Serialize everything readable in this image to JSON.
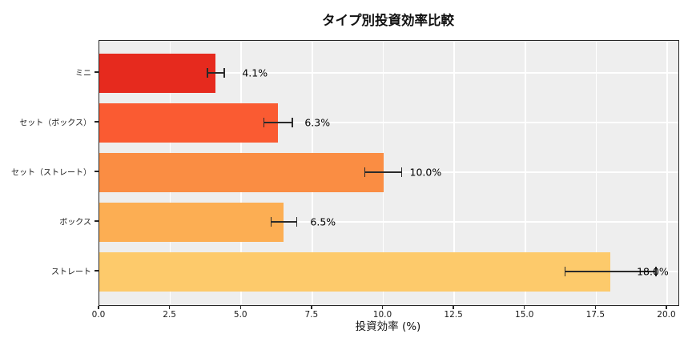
{
  "chart_data": {
    "type": "bar",
    "orientation": "horizontal",
    "title": "タイプ別投資効率比較",
    "xlabel": "投資効率 (%)",
    "ylabel": "",
    "categories": [
      "ミニ",
      "セット（ボックス）",
      "セット（ストレート）",
      "ボックス",
      "ストレート"
    ],
    "values": [
      4.1,
      6.3,
      10.0,
      6.5,
      18.0
    ],
    "errors": [
      0.3,
      0.5,
      0.65,
      0.45,
      1.6
    ],
    "value_labels": [
      "4.1%",
      "6.3%",
      "10.0%",
      "6.5%",
      "18.0%"
    ],
    "bar_colors": [
      "#e62a1e",
      "#fa5b32",
      "#fa8d43",
      "#fcae53",
      "#fdca6b"
    ],
    "xlim": [
      0,
      20.4
    ],
    "xticks": [
      0.0,
      2.5,
      5.0,
      7.5,
      10.0,
      12.5,
      15.0,
      17.5,
      20.0
    ],
    "xtick_labels": [
      "0.0",
      "2.5",
      "5.0",
      "7.5",
      "10.0",
      "12.5",
      "15.0",
      "17.5",
      "20.0"
    ],
    "grid": true,
    "legend": false,
    "plot_bg": "#eeeeee",
    "grid_color": "#ffffff",
    "spine_color": "#262626",
    "error_bar_color": "#2a2a2a",
    "text_color": "#000000"
  }
}
